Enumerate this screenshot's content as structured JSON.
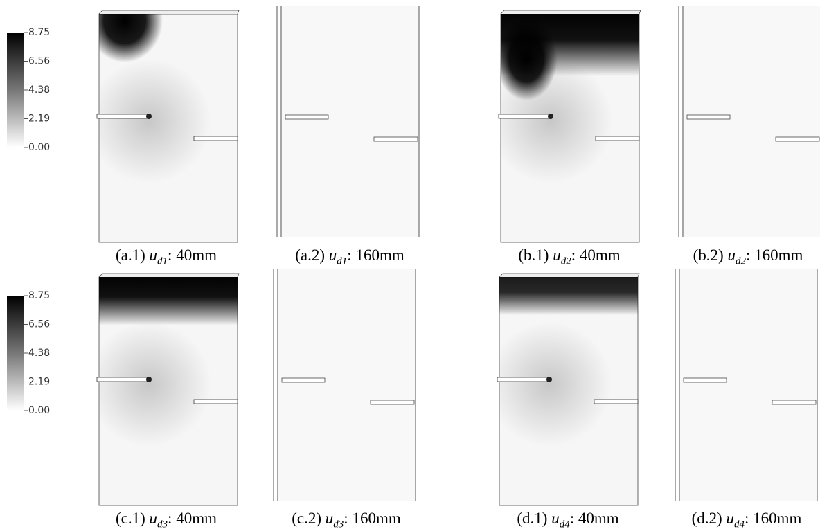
{
  "colorbars": [
    {
      "ticks": [
        "8.75",
        "6.56",
        "4.38",
        "2.19",
        "0.00"
      ]
    },
    {
      "ticks": [
        "8.75",
        "6.56",
        "4.38",
        "2.19",
        "0.00"
      ]
    }
  ],
  "panels": [
    {
      "label": "(a.1)",
      "symbol": "u",
      "subscript": "d1",
      "suffix": ": 40mm"
    },
    {
      "label": "(a.2)",
      "symbol": "u",
      "subscript": "d1",
      "suffix": ": 160mm"
    },
    {
      "label": "(b.1)",
      "symbol": "u",
      "subscript": "d2",
      "suffix": ": 40mm"
    },
    {
      "label": "(b.2)",
      "symbol": "u",
      "subscript": "d2",
      "suffix": ": 160mm"
    },
    {
      "label": "(c.1)",
      "symbol": "u",
      "subscript": "d3",
      "suffix": ": 40mm"
    },
    {
      "label": "(c.2)",
      "symbol": "u",
      "subscript": "d3",
      "suffix": ": 160mm"
    },
    {
      "label": "(d.1)",
      "symbol": "u",
      "subscript": "d4",
      "suffix": ": 40mm"
    },
    {
      "label": "(d.2)",
      "symbol": "u",
      "subscript": "d4",
      "suffix": ": 160mm"
    }
  ]
}
